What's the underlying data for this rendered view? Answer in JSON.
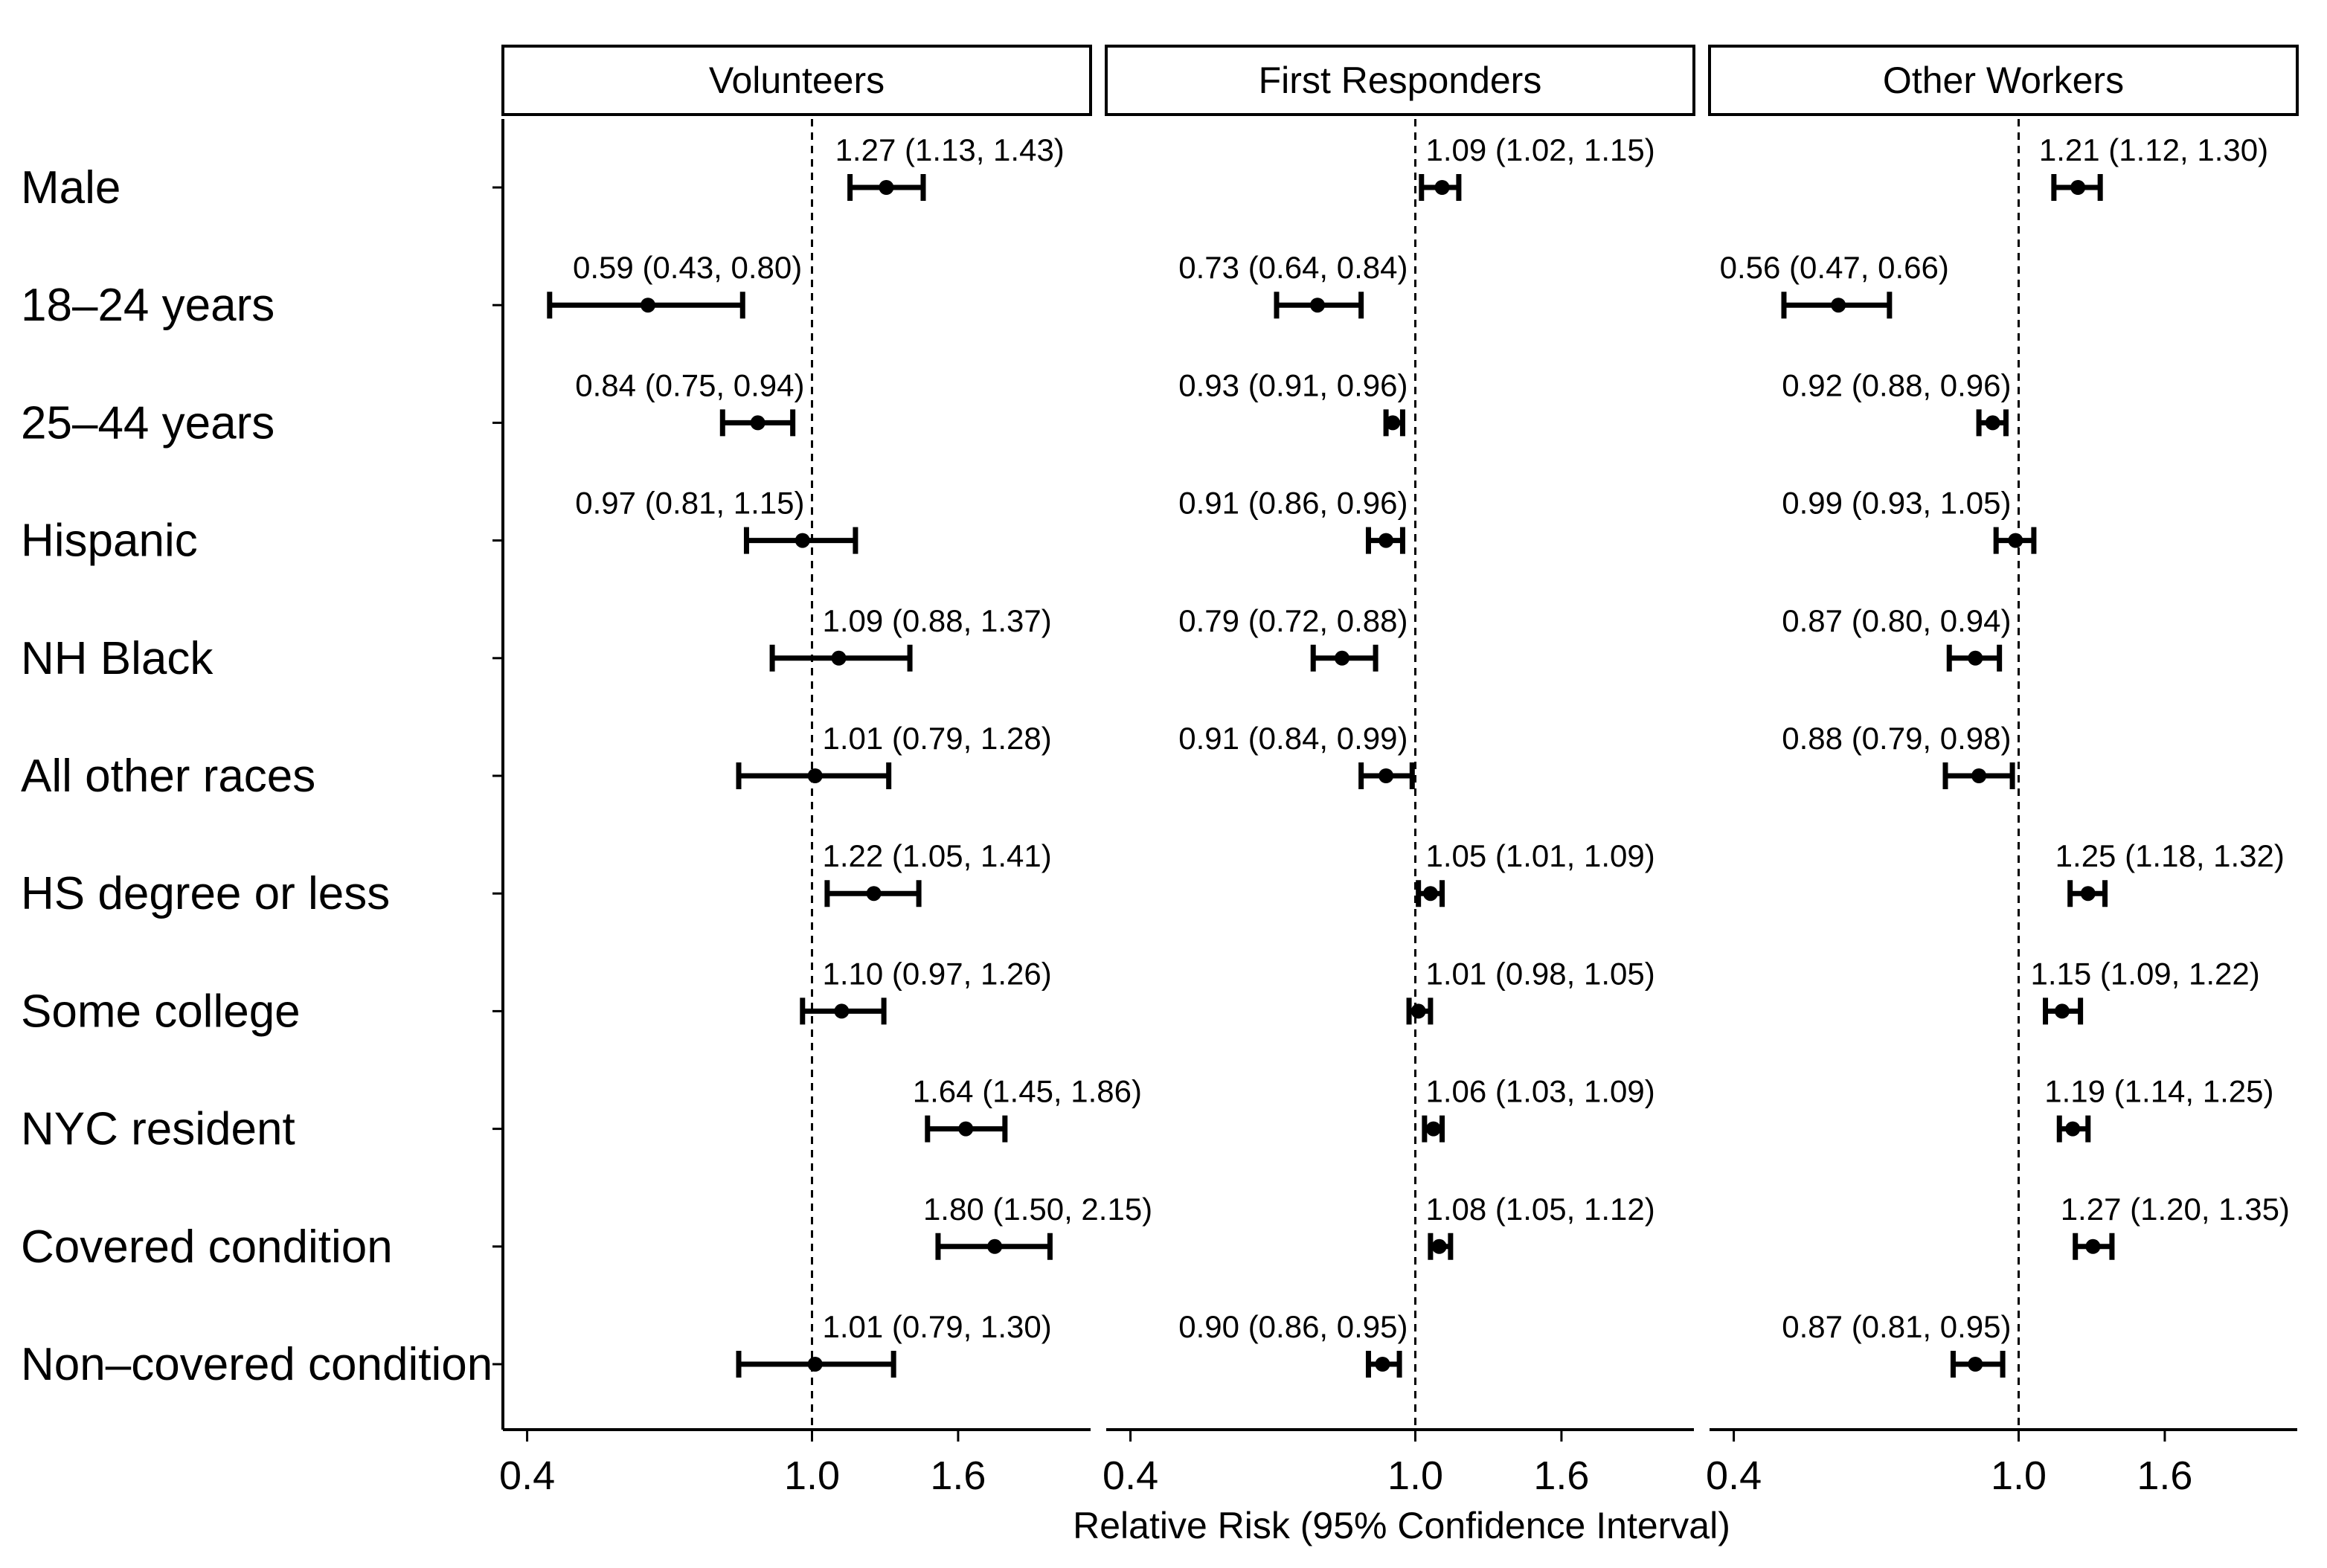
{
  "chart_data": {
    "type": "forest",
    "xlabel": "Relative Risk (95% Confidence Interval)",
    "x_scale": "log",
    "xlim": [
      0.37,
      2.45
    ],
    "x_ticks": [
      {
        "value": 0.4,
        "label": "0.4"
      },
      {
        "value": 1.0,
        "label": "1.0"
      },
      {
        "value": 1.6,
        "label": "1.6"
      }
    ],
    "reference_line": 1.0,
    "categories": [
      "Male",
      "18–24 years",
      "25–44 years",
      "Hispanic",
      "NH Black",
      "All other races",
      "HS degree or less",
      "Some college",
      "NYC resident",
      "Covered condition",
      "Non–covered condition"
    ],
    "series": [
      {
        "name": "Volunteers",
        "points": [
          {
            "rr": 1.27,
            "lo": 1.13,
            "hi": 1.43,
            "label": "1.27 (1.13, 1.43)"
          },
          {
            "rr": 0.59,
            "lo": 0.43,
            "hi": 0.8,
            "label": "0.59 (0.43, 0.80)"
          },
          {
            "rr": 0.84,
            "lo": 0.75,
            "hi": 0.94,
            "label": "0.84 (0.75, 0.94)"
          },
          {
            "rr": 0.97,
            "lo": 0.81,
            "hi": 1.15,
            "label": "0.97 (0.81, 1.15)"
          },
          {
            "rr": 1.09,
            "lo": 0.88,
            "hi": 1.37,
            "label": "1.09 (0.88, 1.37)"
          },
          {
            "rr": 1.01,
            "lo": 0.79,
            "hi": 1.28,
            "label": "1.01 (0.79, 1.28)"
          },
          {
            "rr": 1.22,
            "lo": 1.05,
            "hi": 1.41,
            "label": "1.22 (1.05, 1.41)"
          },
          {
            "rr": 1.1,
            "lo": 0.97,
            "hi": 1.26,
            "label": "1.10 (0.97, 1.26)"
          },
          {
            "rr": 1.64,
            "lo": 1.45,
            "hi": 1.86,
            "label": "1.64 (1.45, 1.86)"
          },
          {
            "rr": 1.8,
            "lo": 1.5,
            "hi": 2.15,
            "label": "1.80 (1.50, 2.15)"
          },
          {
            "rr": 1.01,
            "lo": 0.79,
            "hi": 1.3,
            "label": "1.01 (0.79, 1.30)"
          }
        ]
      },
      {
        "name": "First Responders",
        "points": [
          {
            "rr": 1.09,
            "lo": 1.02,
            "hi": 1.15,
            "label": "1.09 (1.02, 1.15)"
          },
          {
            "rr": 0.73,
            "lo": 0.64,
            "hi": 0.84,
            "label": "0.73 (0.64, 0.84)"
          },
          {
            "rr": 0.93,
            "lo": 0.91,
            "hi": 0.96,
            "label": "0.93 (0.91, 0.96)"
          },
          {
            "rr": 0.91,
            "lo": 0.86,
            "hi": 0.96,
            "label": "0.91 (0.86, 0.96)"
          },
          {
            "rr": 0.79,
            "lo": 0.72,
            "hi": 0.88,
            "label": "0.79 (0.72, 0.88)"
          },
          {
            "rr": 0.91,
            "lo": 0.84,
            "hi": 0.99,
            "label": "0.91 (0.84, 0.99)"
          },
          {
            "rr": 1.05,
            "lo": 1.01,
            "hi": 1.09,
            "label": "1.05 (1.01, 1.09)"
          },
          {
            "rr": 1.01,
            "lo": 0.98,
            "hi": 1.05,
            "label": "1.01 (0.98, 1.05)"
          },
          {
            "rr": 1.06,
            "lo": 1.03,
            "hi": 1.09,
            "label": "1.06 (1.03, 1.09)"
          },
          {
            "rr": 1.08,
            "lo": 1.05,
            "hi": 1.12,
            "label": "1.08 (1.05, 1.12)"
          },
          {
            "rr": 0.9,
            "lo": 0.86,
            "hi": 0.95,
            "label": "0.90 (0.86, 0.95)"
          }
        ]
      },
      {
        "name": "Other Workers",
        "points": [
          {
            "rr": 1.21,
            "lo": 1.12,
            "hi": 1.3,
            "label": "1.21 (1.12, 1.30)"
          },
          {
            "rr": 0.56,
            "lo": 0.47,
            "hi": 0.66,
            "label": "0.56 (0.47, 0.66)"
          },
          {
            "rr": 0.92,
            "lo": 0.88,
            "hi": 0.96,
            "label": "0.92 (0.88, 0.96)"
          },
          {
            "rr": 0.99,
            "lo": 0.93,
            "hi": 1.05,
            "label": "0.99 (0.93, 1.05)"
          },
          {
            "rr": 0.87,
            "lo": 0.8,
            "hi": 0.94,
            "label": "0.87 (0.80, 0.94)"
          },
          {
            "rr": 0.88,
            "lo": 0.79,
            "hi": 0.98,
            "label": "0.88 (0.79, 0.98)"
          },
          {
            "rr": 1.25,
            "lo": 1.18,
            "hi": 1.32,
            "label": "1.25 (1.18, 1.32)"
          },
          {
            "rr": 1.15,
            "lo": 1.09,
            "hi": 1.22,
            "label": "1.15 (1.09, 1.22)"
          },
          {
            "rr": 1.19,
            "lo": 1.14,
            "hi": 1.25,
            "label": "1.19 (1.14, 1.25)"
          },
          {
            "rr": 1.27,
            "lo": 1.2,
            "hi": 1.35,
            "label": "1.27 (1.20, 1.35)"
          },
          {
            "rr": 0.87,
            "lo": 0.81,
            "hi": 0.95,
            "label": "0.87 (0.81, 0.95)"
          }
        ]
      }
    ],
    "colors": {
      "ink": "#000000",
      "background": "#ffffff"
    }
  }
}
